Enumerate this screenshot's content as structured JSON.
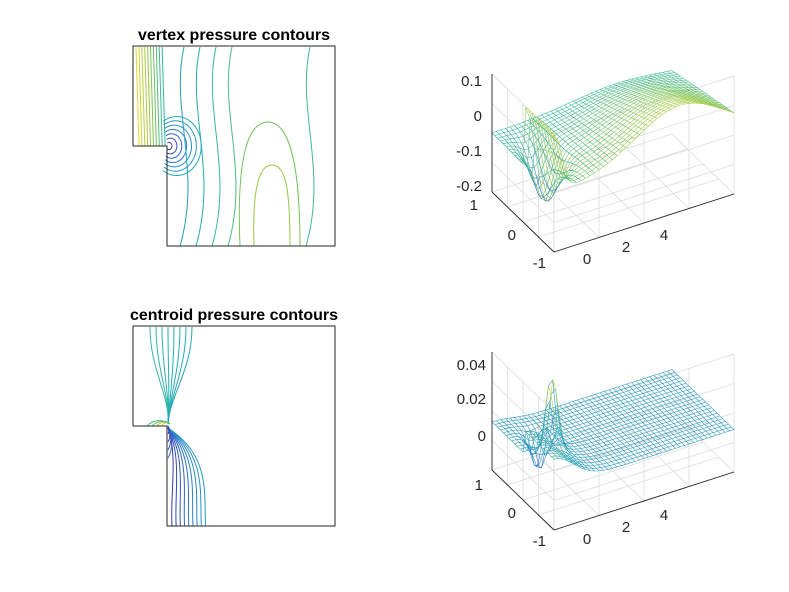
{
  "colors": {
    "low": "#3e26a8",
    "mid_low": "#2a7fd0",
    "mid": "#21b3b0",
    "mid_high": "#8ac646",
    "high": "#f0d52a"
  },
  "chart_data": [
    {
      "type": "contour",
      "title": "vertex pressure contours",
      "xlabel": "",
      "ylabel": "",
      "domain": "L-shaped step channel",
      "grid": false
    },
    {
      "type": "surface",
      "title": "",
      "zticks": [
        "0.1",
        "0",
        "-0.1",
        "-0.2"
      ],
      "yticks": [
        "1",
        "0",
        "-1"
      ],
      "xticks": [
        "0",
        "2",
        "4"
      ],
      "xlim": [
        0,
        5
      ],
      "ylim": [
        -1,
        1
      ],
      "zlim": [
        -0.2,
        0.1
      ],
      "grid": true
    },
    {
      "type": "contour",
      "title": "centroid pressure contours",
      "xlabel": "",
      "ylabel": "",
      "domain": "L-shaped step channel",
      "grid": false
    },
    {
      "type": "surface",
      "title": "",
      "zticks": [
        "0.04",
        "0.02",
        "0"
      ],
      "yticks": [
        "1",
        "0",
        "-1"
      ],
      "xticks": [
        "0",
        "2",
        "4"
      ],
      "xlim": [
        0,
        5
      ],
      "ylim": [
        -1,
        1
      ],
      "zlim": [
        -0.01,
        0.04
      ],
      "grid": true
    }
  ]
}
